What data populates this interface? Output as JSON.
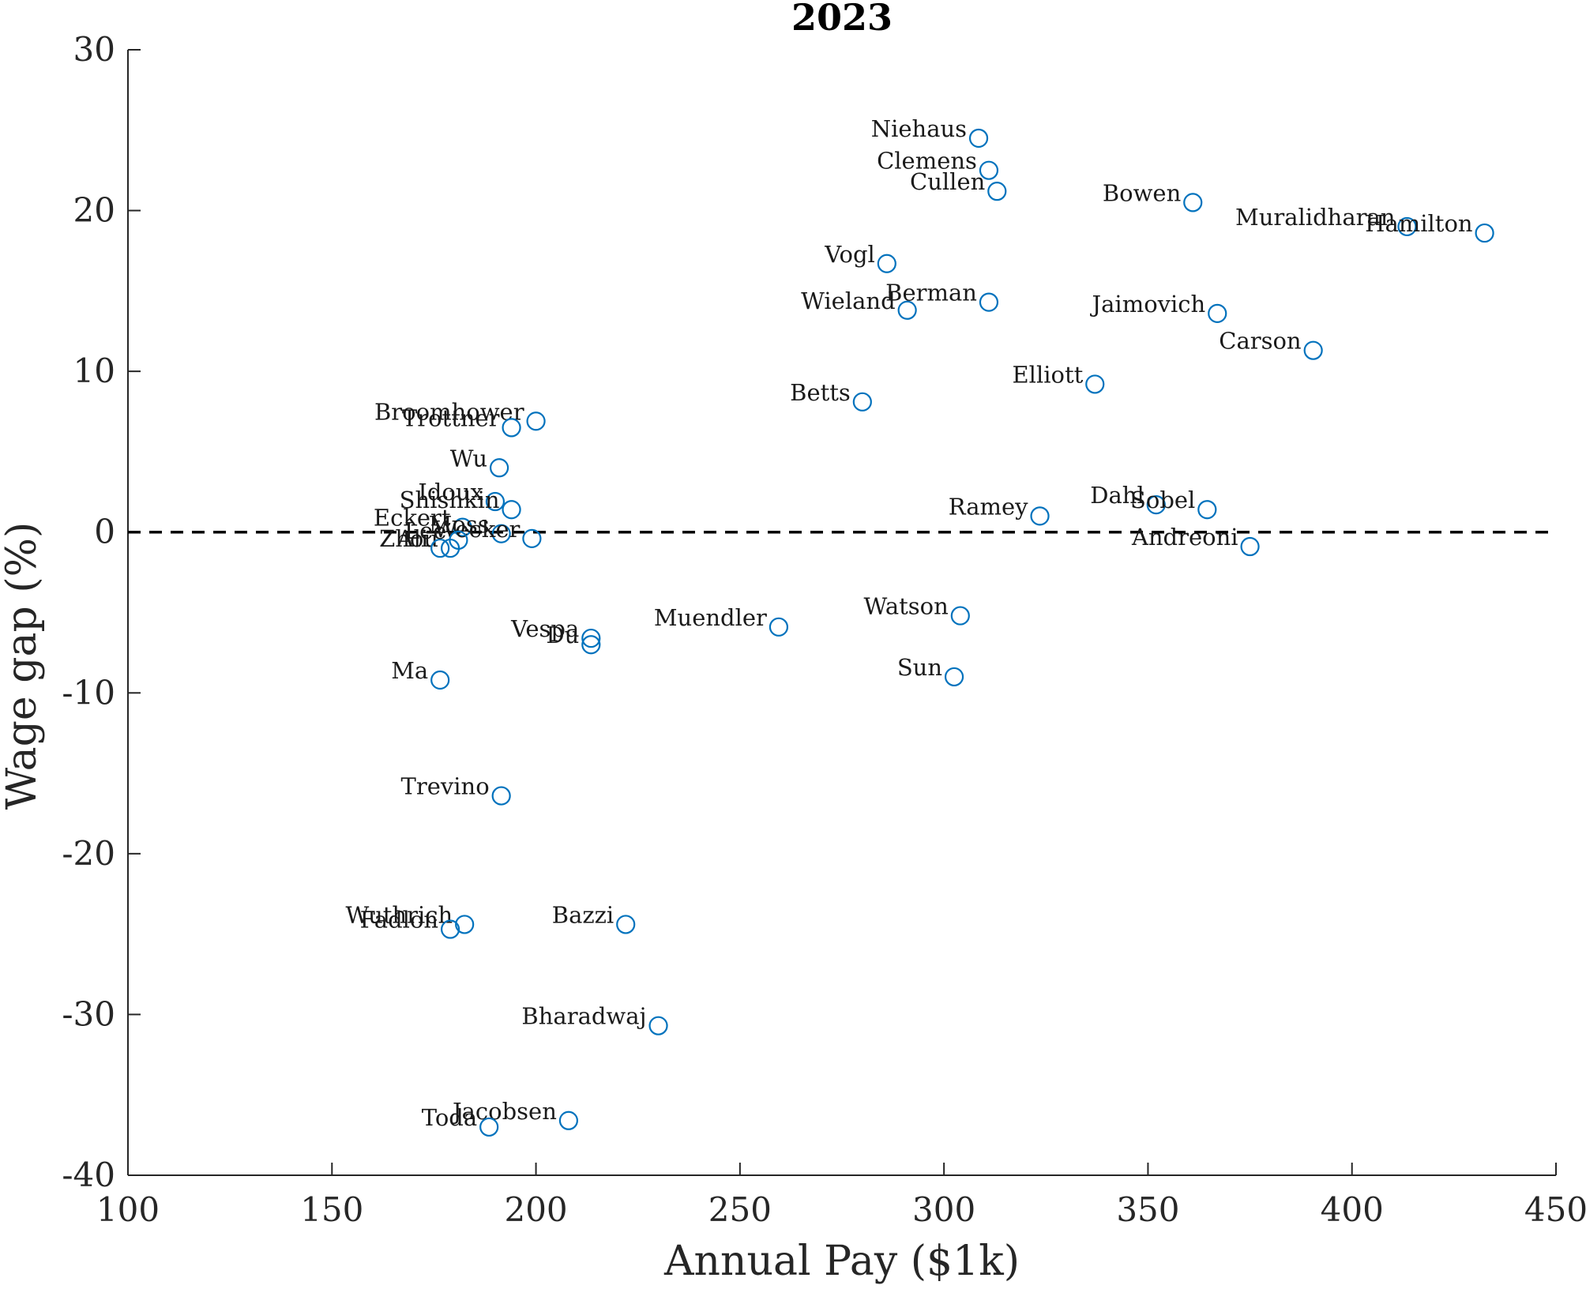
{
  "chart_data": {
    "type": "scatter",
    "title": "2023",
    "xlabel": "Annual Pay ($1k)",
    "ylabel": "Wage gap (%)",
    "xlim": [
      100,
      450
    ],
    "ylim": [
      -40,
      30
    ],
    "xticks": [
      100,
      150,
      200,
      250,
      300,
      350,
      400,
      450
    ],
    "yticks": [
      -40,
      -30,
      -20,
      -10,
      0,
      10,
      20,
      30
    ],
    "reference_line": {
      "y": 0,
      "style": "dashed"
    },
    "marker_color": "#0072BD",
    "points": [
      {
        "label": "Niehaus",
        "x": 308.5,
        "y": 24.5
      },
      {
        "label": "Clemens",
        "x": 311,
        "y": 22.5
      },
      {
        "label": "Cullen",
        "x": 313,
        "y": 21.2
      },
      {
        "label": "Bowen",
        "x": 361,
        "y": 20.5
      },
      {
        "label": "Muralidharan",
        "x": 413.5,
        "y": 19
      },
      {
        "label": "Hamilton",
        "x": 432.5,
        "y": 18.6
      },
      {
        "label": "Vogl",
        "x": 286,
        "y": 16.7
      },
      {
        "label": "Berman",
        "x": 311,
        "y": 14.3
      },
      {
        "label": "Wieland",
        "x": 291,
        "y": 13.8
      },
      {
        "label": "Jaimovich",
        "x": 367,
        "y": 13.6
      },
      {
        "label": "Carson",
        "x": 390.5,
        "y": 11.3
      },
      {
        "label": "Elliott",
        "x": 337,
        "y": 9.2
      },
      {
        "label": "Betts",
        "x": 280,
        "y": 8.1
      },
      {
        "label": "Broomhower",
        "x": 200,
        "y": 6.9
      },
      {
        "label": "Trottner",
        "x": 194,
        "y": 6.5
      },
      {
        "label": "Wu",
        "x": 191,
        "y": 4
      },
      {
        "label": "Idoux",
        "x": 190,
        "y": 1.9
      },
      {
        "label": "Shishkin",
        "x": 194,
        "y": 1.4
      },
      {
        "label": "Eckert",
        "x": 182,
        "y": 0.3
      },
      {
        "label": "Moss",
        "x": 191.5,
        "y": -0.1
      },
      {
        "label": "Wecker",
        "x": 199,
        "y": -0.4
      },
      {
        "label": "Zhou",
        "x": 179,
        "y": -1
      },
      {
        "label": "Ali",
        "x": 176.5,
        "y": -1
      },
      {
        "label": "Lee",
        "x": 181,
        "y": -0.5
      },
      {
        "label": "Ramey",
        "x": 323.5,
        "y": 1
      },
      {
        "label": "Dahl",
        "x": 352,
        "y": 1.7
      },
      {
        "label": "Sobel",
        "x": 364.5,
        "y": 1.4
      },
      {
        "label": "Andreoni",
        "x": 375,
        "y": -0.9
      },
      {
        "label": "Watson",
        "x": 304,
        "y": -5.2
      },
      {
        "label": "Muendler",
        "x": 259.5,
        "y": -5.9
      },
      {
        "label": "Vespa",
        "x": 213.5,
        "y": -6.6
      },
      {
        "label": "Du",
        "x": 213.5,
        "y": -7
      },
      {
        "label": "Sun",
        "x": 302.5,
        "y": -9
      },
      {
        "label": "Ma",
        "x": 176.5,
        "y": -9.2
      },
      {
        "label": "Trevino",
        "x": 191.5,
        "y": -16.4
      },
      {
        "label": "Wuthrich",
        "x": 182.5,
        "y": -24.4
      },
      {
        "label": "Fadlon",
        "x": 179,
        "y": -24.7
      },
      {
        "label": "Bazzi",
        "x": 222,
        "y": -24.4
      },
      {
        "label": "Bharadwaj",
        "x": 230,
        "y": -30.7
      },
      {
        "label": "Jacobsen",
        "x": 208,
        "y": -36.6
      },
      {
        "label": "Toda",
        "x": 188.5,
        "y": -37
      }
    ]
  }
}
